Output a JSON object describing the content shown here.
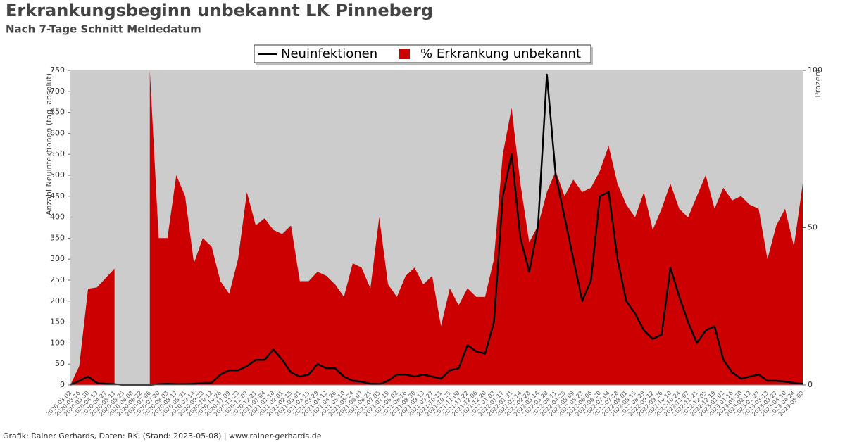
{
  "chart_data": {
    "type": "line-area",
    "title": "Erkrankungsbeginn unbekannt LK Pinneberg",
    "subtitle": "Nach 7-Tage Schnitt Meldedatum",
    "source": "Grafik: Rainer Gerhards, Daten: RKI (Stand: 2023-05-08) | www.rainer-gerhards.de",
    "y_label": "Anzahl Neuinfektionen (tag. absolut)",
    "y2_label": "Prozent",
    "ylim": [
      0,
      750
    ],
    "yticks": [
      0,
      50,
      100,
      150,
      200,
      250,
      300,
      350,
      400,
      450,
      500,
      550,
      600,
      650,
      700,
      750
    ],
    "y2lim": [
      0,
      100
    ],
    "y2ticks": [
      0,
      50,
      100
    ],
    "background": "#cccccc",
    "legend": "top",
    "categories": [
      "2020-03-02",
      "2020-03-16",
      "2020-03-30",
      "2020-04-13",
      "2020-04-27",
      "2020-05-11",
      "2020-05-25",
      "2020-06-08",
      "2020-06-22",
      "2020-07-06",
      "2020-07-20",
      "2020-08-03",
      "2020-08-17",
      "2020-08-31",
      "2020-09-14",
      "2020-09-28",
      "2020-10-12",
      "2020-10-26",
      "2020-11-09",
      "2020-11-23",
      "2020-12-07",
      "2020-12-21",
      "2021-01-04",
      "2021-01-18",
      "2021-02-01",
      "2021-02-15",
      "2021-03-01",
      "2021-03-15",
      "2021-03-29",
      "2021-04-12",
      "2021-04-26",
      "2021-05-10",
      "2021-05-24",
      "2021-06-07",
      "2021-06-21",
      "2021-07-05",
      "2021-07-19",
      "2021-08-02",
      "2021-08-16",
      "2021-08-30",
      "2021-09-13",
      "2021-09-27",
      "2021-10-11",
      "2021-10-25",
      "2021-11-08",
      "2021-11-22",
      "2021-12-06",
      "2021-12-20",
      "2022-01-03",
      "2022-01-17",
      "2022-01-31",
      "2022-02-14",
      "2022-02-28",
      "2022-03-14",
      "2022-03-28",
      "2022-04-11",
      "2022-04-25",
      "2022-05-09",
      "2022-05-23",
      "2022-06-06",
      "2022-06-20",
      "2022-07-04",
      "2022-07-18",
      "2022-08-01",
      "2022-08-15",
      "2022-08-29",
      "2022-09-12",
      "2022-09-26",
      "2022-10-10",
      "2022-10-24",
      "2022-11-07",
      "2022-11-21",
      "2022-12-05",
      "2022-12-19",
      "2023-01-02",
      "2023-01-16",
      "2023-01-30",
      "2023-02-13",
      "2023-02-27",
      "2023-03-13",
      "2023-03-27",
      "2023-04-10",
      "2023-04-24",
      "2023-05-08"
    ],
    "series": [
      {
        "name": "% Erkrankung unbekannt",
        "color": "#cc0000",
        "axis": "y2",
        "kind": "area",
        "values": [
          0,
          6,
          30.6,
          31,
          34,
          37,
          null,
          null,
          null,
          100,
          46.7,
          46.7,
          66.7,
          60,
          38.7,
          46.7,
          44,
          33,
          29,
          40,
          61.3,
          50.7,
          53,
          49.3,
          48,
          50.7,
          33,
          33,
          36,
          34.7,
          32,
          28,
          38.7,
          37.3,
          30.7,
          53.3,
          32,
          28,
          34.7,
          37.3,
          32,
          34.7,
          18.7,
          30.7,
          25.3,
          30.7,
          28,
          28,
          40,
          73.3,
          88,
          64,
          45.3,
          50.7,
          61.3,
          68,
          60,
          65.3,
          61.3,
          62.7,
          68,
          76,
          64,
          57.3,
          53.3,
          61.3,
          49.3,
          56,
          64,
          56,
          53.3,
          60,
          66.7,
          56,
          62.7,
          58.7,
          60,
          57.3,
          56,
          40,
          50.7,
          56,
          44,
          64
        ]
      },
      {
        "name": "Neuinfektionen",
        "color": "#000000",
        "kind": "line",
        "values": [
          0,
          10,
          20,
          5,
          3,
          2,
          0,
          0,
          0,
          0,
          2,
          3,
          2,
          2,
          3,
          5,
          5,
          25,
          35,
          35,
          45,
          60,
          60,
          85,
          60,
          30,
          20,
          25,
          50,
          40,
          40,
          20,
          10,
          8,
          3,
          2,
          10,
          25,
          25,
          20,
          25,
          20,
          15,
          35,
          40,
          95,
          80,
          75,
          150,
          450,
          550,
          350,
          270,
          380,
          740,
          500,
          400,
          300,
          200,
          250,
          450,
          460,
          300,
          200,
          170,
          130,
          110,
          120,
          280,
          210,
          150,
          100,
          130,
          140,
          60,
          30,
          15,
          20,
          25,
          10,
          10,
          8,
          5,
          3
        ]
      }
    ]
  }
}
